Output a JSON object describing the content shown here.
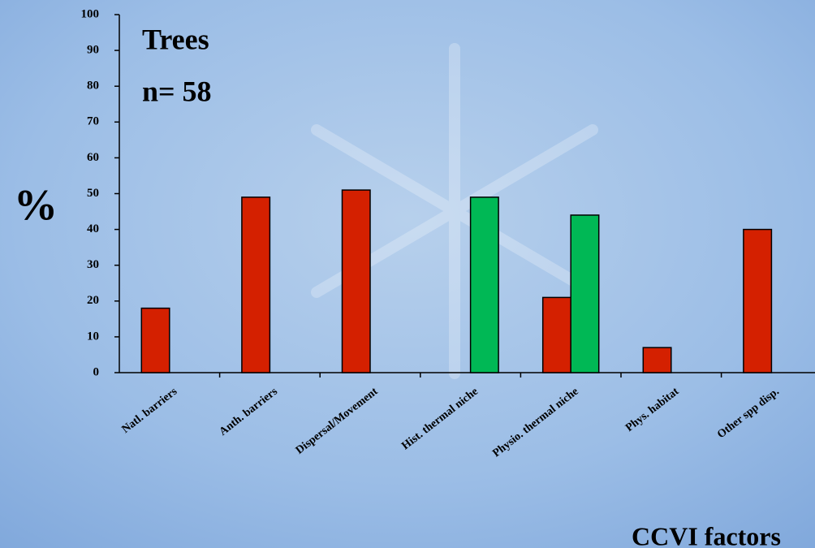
{
  "chart_data": {
    "type": "bar",
    "annotations": [
      "Trees",
      "n= 58"
    ],
    "y_label": "%",
    "x_label": "CCVI factors",
    "categories": [
      "Natl. barriers",
      "Anth. barriers",
      "Dispersal/Movement",
      "Hist. thermal niche",
      "Physio. thermal niche",
      "Phys. habitat",
      "Other spp disp."
    ],
    "series": [
      {
        "color": "#d42000",
        "values": [
          18,
          49,
          51,
          null,
          21,
          7,
          40
        ]
      },
      {
        "color": "#00b855",
        "values": [
          null,
          null,
          null,
          49,
          44,
          null,
          null
        ]
      }
    ],
    "ylim": [
      0,
      100
    ],
    "yticks": [
      0,
      10,
      20,
      30,
      40,
      50,
      60,
      70,
      80,
      90,
      100
    ]
  }
}
